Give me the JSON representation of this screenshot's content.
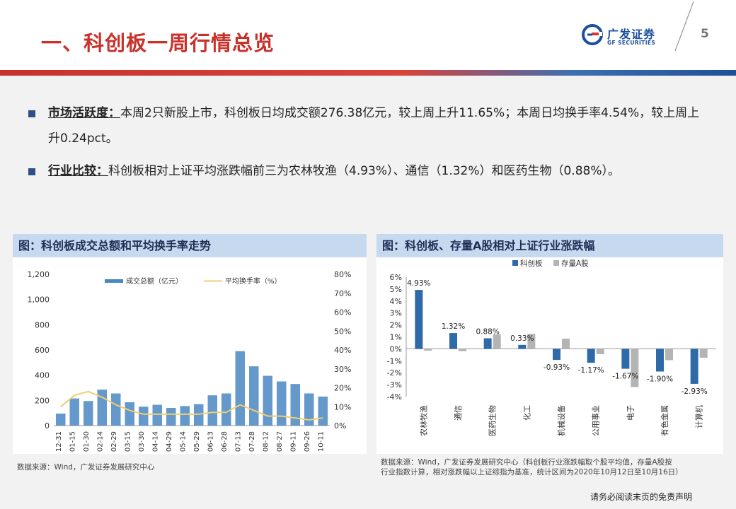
{
  "header": {
    "title": "一、科创板一周行情总览",
    "logo_cn": "广发证券",
    "logo_en": "GF SECURITIES",
    "page_number": "5"
  },
  "bullets": [
    {
      "lead": "市场活跃度：",
      "text": "本周2只新股上市，科创板日均成交额276.38亿元，较上周上升11.65%；本周日均换手率4.54%，较上周上升0.24pct。"
    },
    {
      "lead": "行业比较：",
      "text": "科创板相对上证平均涨跌幅前三为农林牧渔（4.93%）、通信（1.32%）和医药生物（0.88%）。"
    }
  ],
  "left_panel": {
    "title": "图：科创板成交总额和平均换手率走势",
    "source": "数据来源：Wind，广发证券发展研究中心"
  },
  "right_panel": {
    "title": "图：科创板、存量A股相对上证行业涨跌幅",
    "source_line1": "数据来源：Wind，广发证券发展研究中心（科创板行业涨跌幅取个股平均值，存量A股按",
    "source_line2": "行业指数计算，相对涨跌幅以上证综指为基准，统计区间为2020年10月12日至10月16日）"
  },
  "footer": {
    "note": "请务必阅读末页的免责声明"
  },
  "colors": {
    "accent_red": "#c8322a",
    "navy": "#1c4f9c",
    "bar_blue": "#3c7ab9",
    "line_gold": "#f2d27a",
    "bar_gray": "#b4b4b4"
  },
  "chart_data": [
    {
      "type": "bar",
      "title": "图：科创板成交总额和平均换手率走势",
      "legend": [
        "成交总额（亿元）",
        "平均换手率（%）"
      ],
      "legend_position": "top",
      "y_left": {
        "ylim": [
          0,
          1200
        ],
        "ticks": [
          "0",
          "200",
          "400",
          "600",
          "800",
          "1,000",
          "1,200"
        ]
      },
      "y_right": {
        "ylim": [
          0,
          80
        ],
        "ticks": [
          "0%",
          "10%",
          "20%",
          "30%",
          "40%",
          "50%",
          "60%",
          "70%",
          "80%"
        ]
      },
      "x_ticks": [
        "12-31",
        "01-15",
        "01-30",
        "02-14",
        "02-29",
        "03-15",
        "03-30",
        "04-14",
        "04-29",
        "05-14",
        "05-29",
        "06-13",
        "06-28",
        "07-13",
        "07-28",
        "08-12",
        "08-27",
        "09-11",
        "09-26",
        "10-11"
      ],
      "turnover_by_period": [
        95,
        215,
        195,
        285,
        255,
        185,
        150,
        165,
        140,
        155,
        170,
        240,
        255,
        590,
        470,
        395,
        350,
        330,
        255,
        230
      ],
      "rate_by_period": [
        10,
        16,
        18,
        15,
        11,
        8,
        6,
        6,
        6,
        6,
        6,
        7,
        7,
        11,
        8,
        5,
        5,
        4,
        3,
        4
      ]
    },
    {
      "type": "bar",
      "title": "图：科创板、存量A股相对上证行业涨跌幅",
      "legend": [
        "科创板",
        "存量A股"
      ],
      "legend_position": "top-right",
      "categories": [
        "农林牧渔",
        "通信",
        "医药生物",
        "化工",
        "机械设备",
        "公用事业",
        "电子",
        "有色金属",
        "计算机"
      ],
      "series": [
        {
          "name": "科创板",
          "values": [
            4.93,
            1.32,
            0.88,
            0.33,
            -0.93,
            -1.17,
            -1.67,
            -1.9,
            -2.93
          ]
        },
        {
          "name": "存量A股",
          "values": [
            -0.15,
            -0.2,
            1.2,
            1.25,
            0.85,
            -0.45,
            -3.2,
            -0.95,
            -0.75
          ]
        }
      ],
      "data_labels": [
        "4.93%",
        "1.32%",
        "0.88%",
        "0.33%",
        "-0.93%",
        "-1.17%",
        "-1.67%",
        "-1.90%",
        "-2.93%"
      ],
      "ylim": [
        -4,
        6
      ],
      "y_ticks": [
        "-4%",
        "-3%",
        "-2%",
        "-1%",
        "0%",
        "1%",
        "2%",
        "3%",
        "4%",
        "5%",
        "6%"
      ]
    }
  ]
}
